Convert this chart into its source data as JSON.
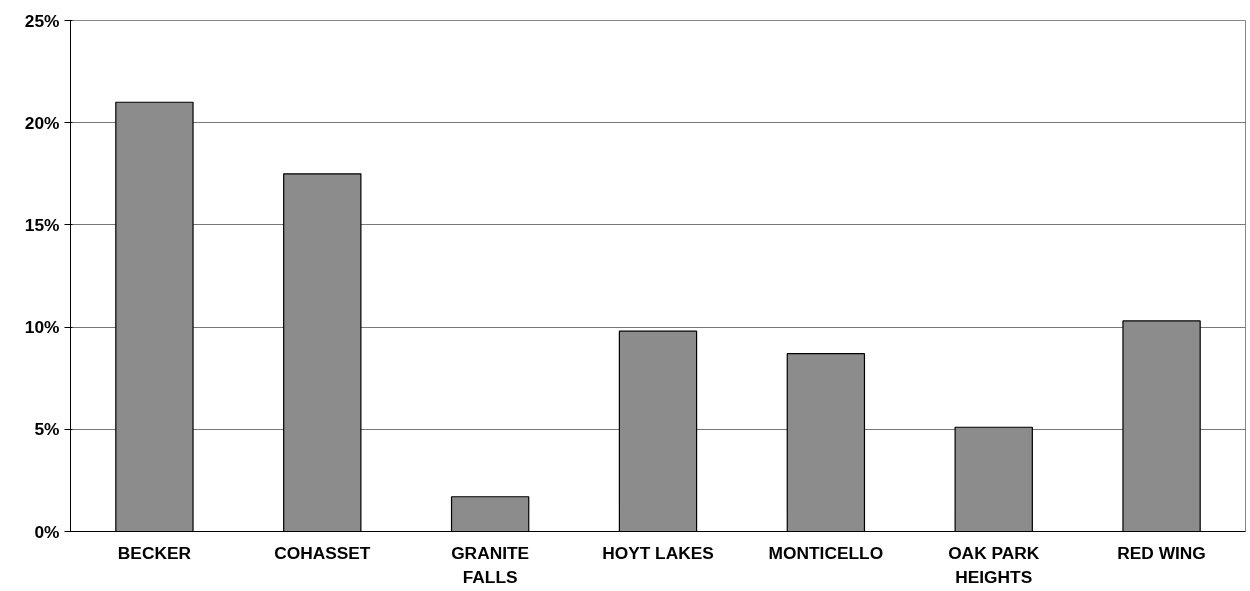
{
  "chart_data": {
    "type": "bar",
    "categories": [
      "BECKER",
      "COHASSET",
      "GRANITE FALLS",
      "HOYT LAKES",
      "MONTICELLO",
      "OAK PARK HEIGHTS",
      "RED WING"
    ],
    "values": [
      21.0,
      17.5,
      1.7,
      9.8,
      8.7,
      5.1,
      10.3
    ],
    "color": "#8c8c8c",
    "ylim": [
      0,
      25
    ],
    "yticks": [
      {
        "value": 0,
        "label": "0%"
      },
      {
        "value": 5,
        "label": "5%"
      },
      {
        "value": 10,
        "label": "10%"
      },
      {
        "value": 15,
        "label": "15%"
      },
      {
        "value": 20,
        "label": "20%"
      },
      {
        "value": 25,
        "label": "25%"
      }
    ],
    "grid": "y"
  }
}
